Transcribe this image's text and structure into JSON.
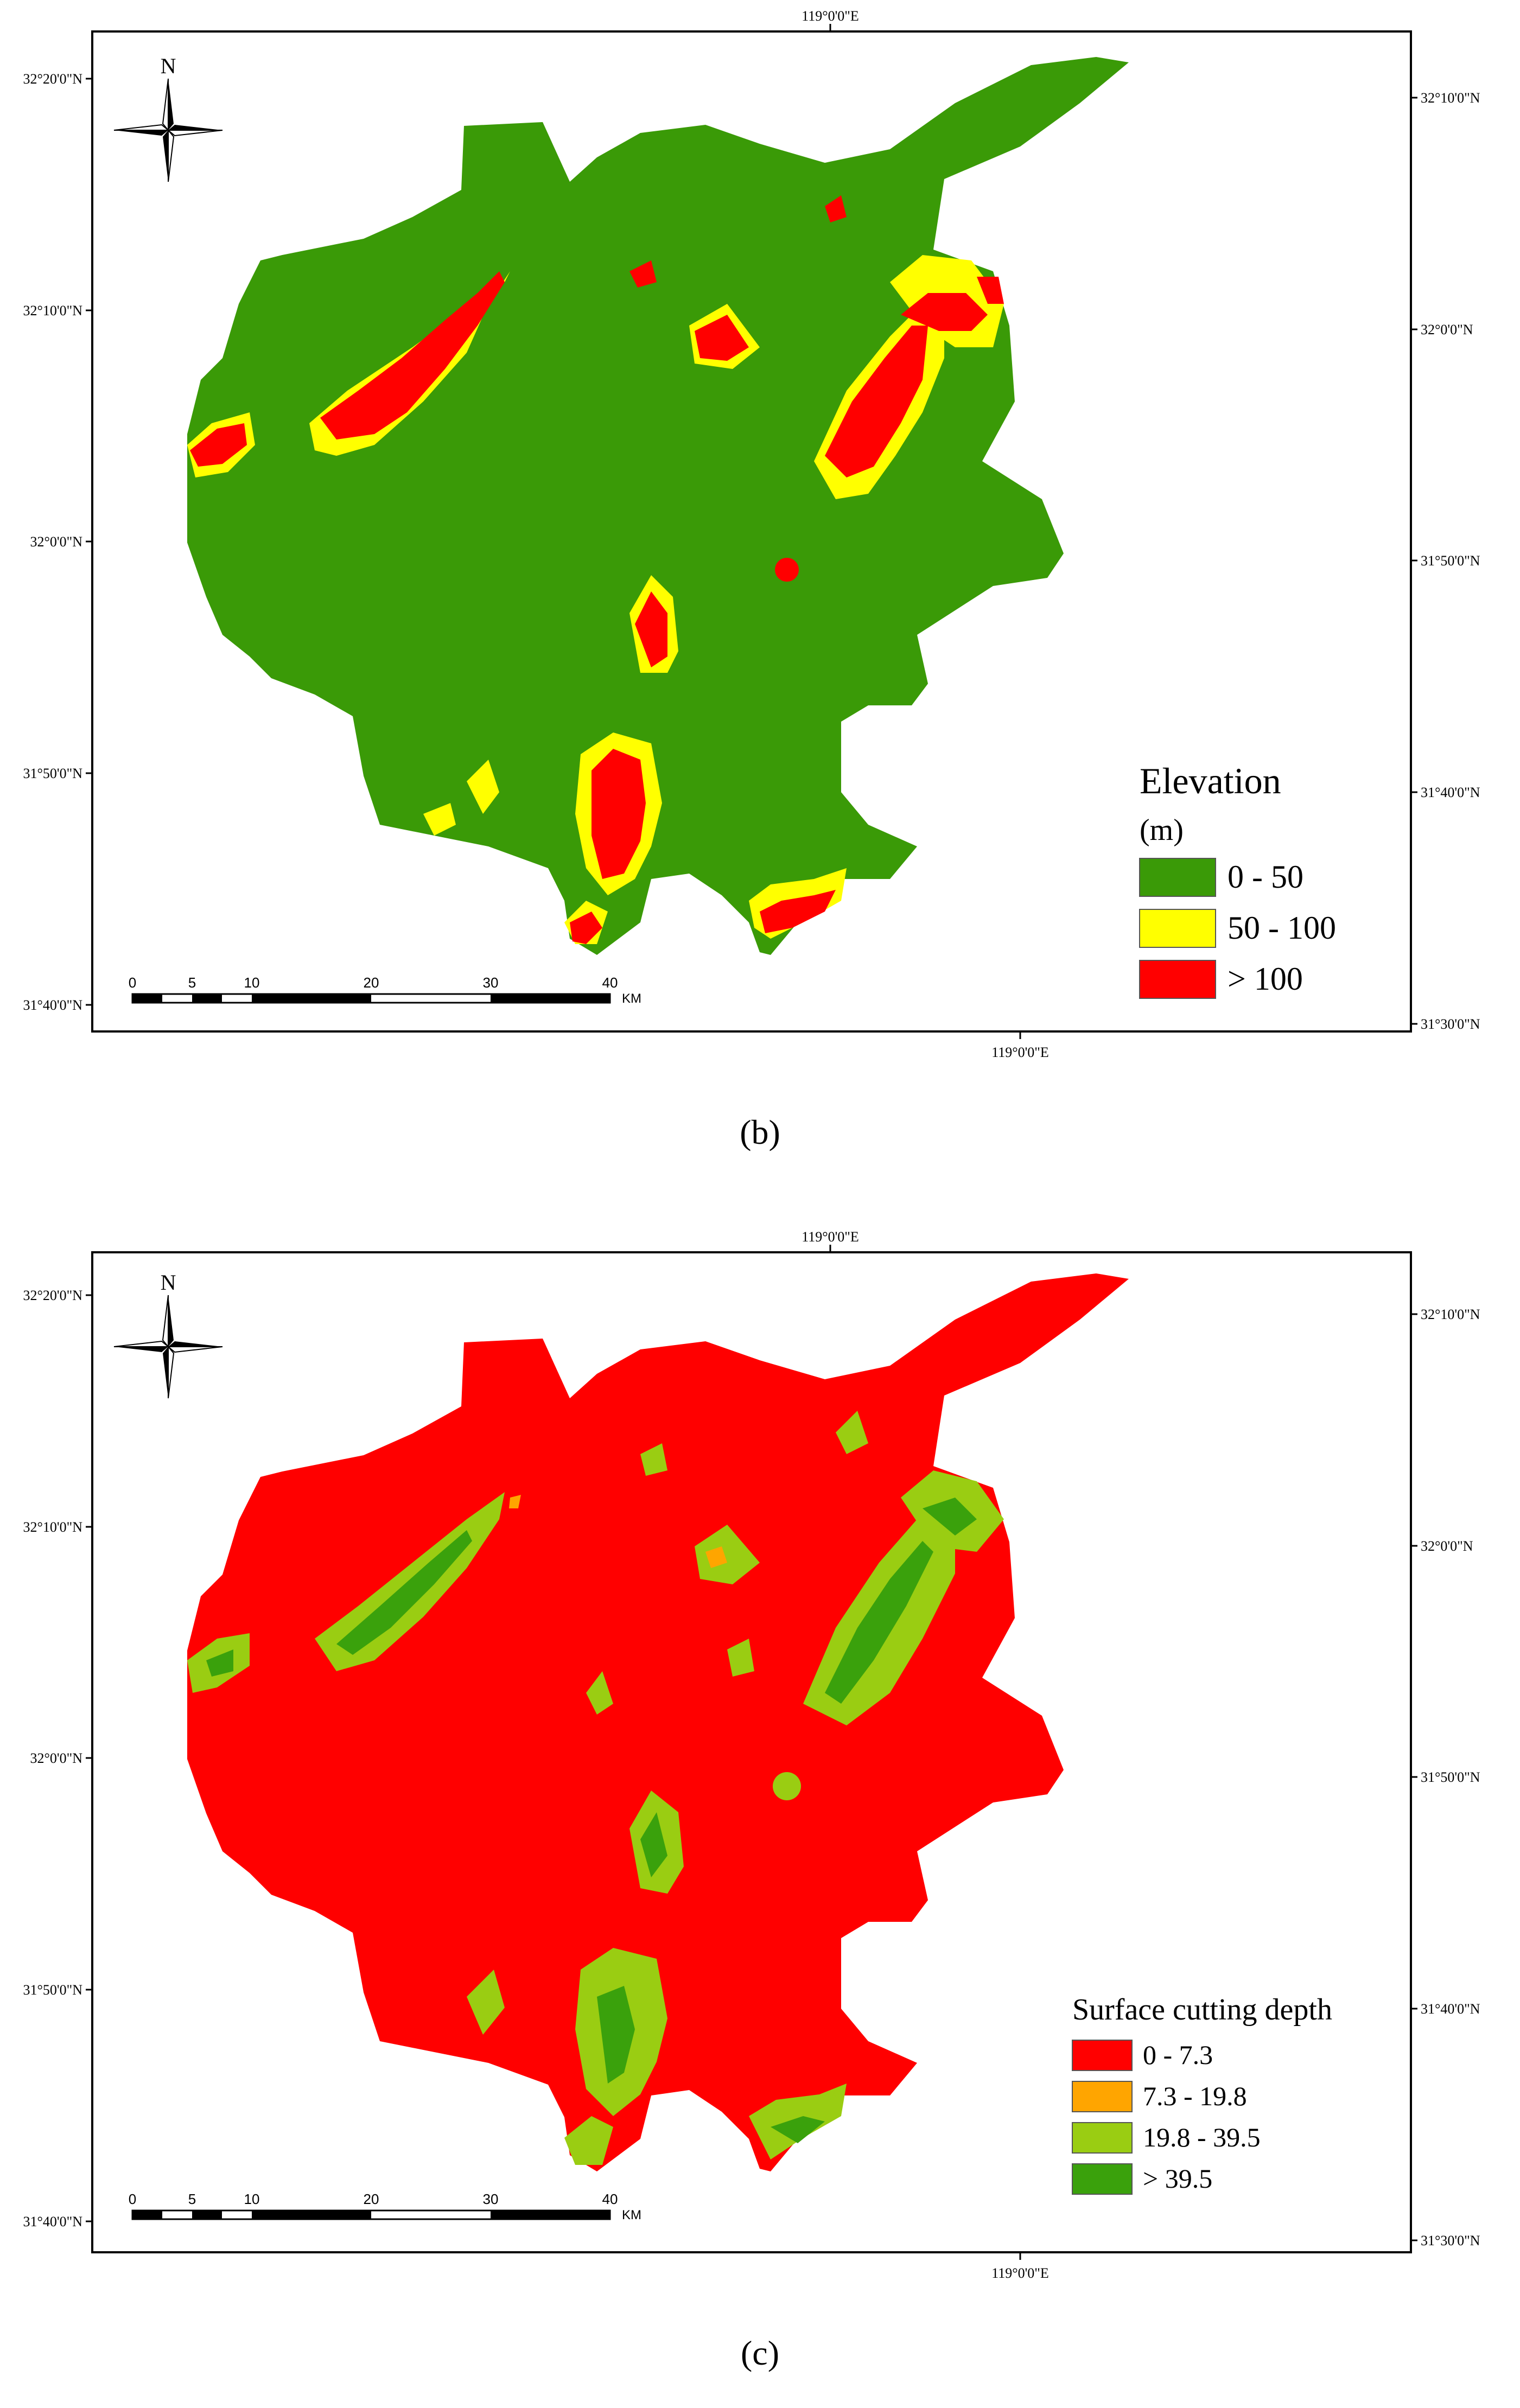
{
  "panels": [
    {
      "id": "b",
      "caption": "(b)",
      "lon_label_top": "119°0'0\"E",
      "lon_label_bottom": "119°0'0\"E",
      "left_lat_labels": [
        "32°20'0\"N",
        "32°10'0\"N",
        "32°0'0\"N",
        "31°50'0\"N",
        "31°40'0\"N"
      ],
      "right_lat_labels": [
        "32°10'0\"N",
        "32°0'0\"N",
        "31°50'0\"N",
        "31°40'0\"N",
        "31°30'0\"N"
      ],
      "north_label": "N",
      "scale": {
        "ticks": [
          "0",
          "5",
          "10",
          "20",
          "30",
          "40"
        ],
        "unit": "KM"
      },
      "legend": {
        "title": "Elevation",
        "subtitle": "(m)",
        "items": [
          {
            "label": "0 - 50",
            "color": "#3a9a07"
          },
          {
            "label": "50 - 100",
            "color": "#ffff00"
          },
          {
            "label": "> 100",
            "color": "#ff0000"
          }
        ]
      }
    },
    {
      "id": "c",
      "caption": "(c)",
      "lon_label_top": "119°0'0\"E",
      "lon_label_bottom": "119°0'0\"E",
      "left_lat_labels": [
        "32°20'0\"N",
        "32°10'0\"N",
        "32°0'0\"N",
        "31°50'0\"N",
        "31°40'0\"N"
      ],
      "right_lat_labels": [
        "32°10'0\"N",
        "32°0'0\"N",
        "31°50'0\"N",
        "31°40'0\"N",
        "31°30'0\"N"
      ],
      "north_label": "N",
      "scale": {
        "ticks": [
          "0",
          "5",
          "10",
          "20",
          "30",
          "40"
        ],
        "unit": "KM"
      },
      "legend": {
        "title": "Surface cutting depth",
        "items": [
          {
            "label": "0 - 7.3",
            "color": "#ff0000"
          },
          {
            "label": "7.3 - 19.8",
            "color": "#ffa500"
          },
          {
            "label": "19.8 - 39.5",
            "color": "#9acd12"
          },
          {
            "label": "> 39.5",
            "color": "#3aa10c"
          }
        ]
      }
    }
  ]
}
